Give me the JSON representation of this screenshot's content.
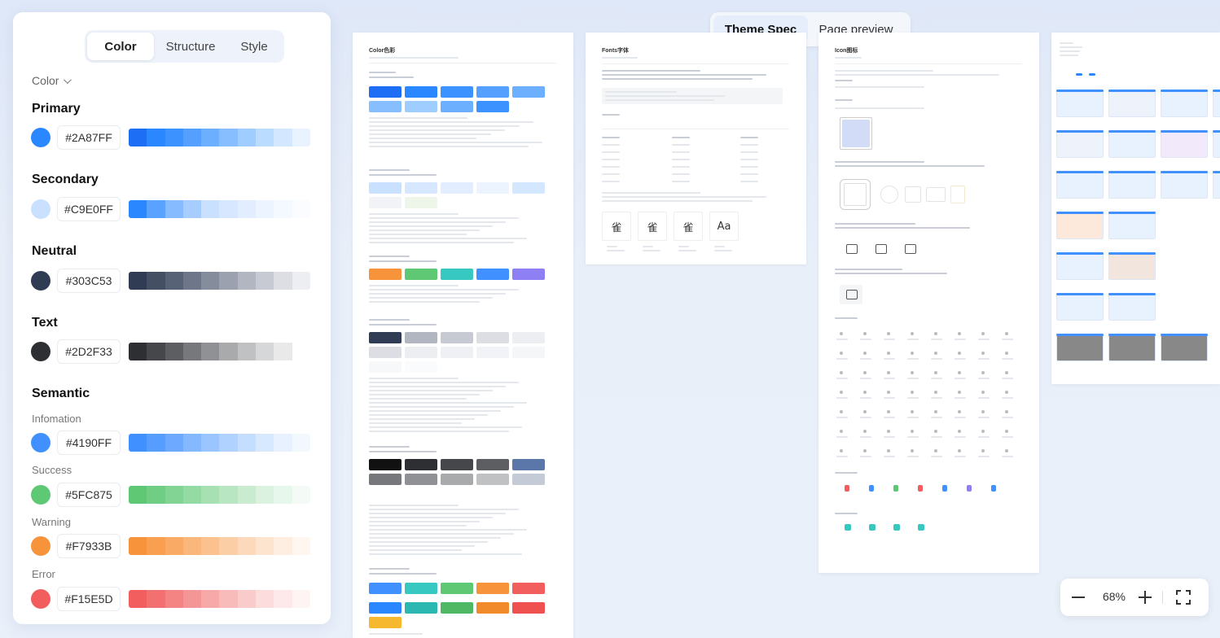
{
  "panel": {
    "tabs": [
      {
        "label": "Color",
        "active": true
      },
      {
        "label": "Structure",
        "active": false
      },
      {
        "label": "Style",
        "active": false
      }
    ],
    "filter_label": "Color",
    "groups": {
      "primary": {
        "title": "Primary",
        "hex": "#2A87FF",
        "ramp": [
          "#1e6ef5",
          "#2a87ff",
          "#3c92ff",
          "#55a0ff",
          "#6cafff",
          "#86beff",
          "#a0cdff",
          "#badcff",
          "#d3e8ff",
          "#e9f3ff"
        ]
      },
      "secondary": {
        "title": "Secondary",
        "hex": "#C9E0FF",
        "ramp": [
          "#2a87ff",
          "#5aa2ff",
          "#86bbff",
          "#a7cdff",
          "#c9e0ff",
          "#d6e7ff",
          "#e2eeff",
          "#ecf4ff",
          "#f4f8ff",
          "#fafcff"
        ]
      },
      "neutral": {
        "title": "Neutral",
        "hex": "#303C53",
        "ramp": [
          "#303c53",
          "#444f64",
          "#586277",
          "#6e778a",
          "#858c9c",
          "#9ba1ae",
          "#b1b6c0",
          "#c7cad2",
          "#dcdee3",
          "#eceef1"
        ]
      },
      "text": {
        "title": "Text",
        "hex": "#2D2F33",
        "ramp": [
          "#2d2f33",
          "#45474b",
          "#5c5e62",
          "#76787b",
          "#8f9194",
          "#a8aaac",
          "#c0c1c3",
          "#d6d7d8",
          "#e9e9ea",
          "#ffffff"
        ]
      },
      "semantic": {
        "title": "Semantic",
        "items": [
          {
            "label": "Infomation",
            "hex": "#4190FF",
            "ramp": [
              "#4190ff",
              "#579dff",
              "#6daaff",
              "#84b8ff",
              "#9ac5ff",
              "#b0d2ff",
              "#c4deff",
              "#d7e9ff",
              "#e7f1ff",
              "#f3f8ff"
            ]
          },
          {
            "label": "Success",
            "hex": "#5FC875",
            "ramp": [
              "#5fc875",
              "#70ce84",
              "#82d494",
              "#94daa3",
              "#a6e0b3",
              "#b8e6c2",
              "#c9ecd1",
              "#daf2df",
              "#e8f7ec",
              "#f4fbf6"
            ]
          },
          {
            "label": "Warning",
            "hex": "#F7933B",
            "ramp": [
              "#f7933b",
              "#f89f50",
              "#f9ab65",
              "#fab77b",
              "#fbc290",
              "#fccea6",
              "#fcd9bb",
              "#fde4cf",
              "#feeee2",
              "#fff6ef"
            ]
          },
          {
            "label": "Error",
            "hex": "#F15E5D",
            "ramp": [
              "#f15e5d",
              "#f27170",
              "#f48383",
              "#f59696",
              "#f7a8a8",
              "#f9baba",
              "#facbcb",
              "#fcdcdc",
              "#fde9e9",
              "#fef4f4"
            ]
          }
        ]
      }
    }
  },
  "view_toggle": {
    "options": [
      "Theme Spec",
      "Page preview"
    ],
    "active": "Theme Spec"
  },
  "canvas": {
    "page1_title": "Color色彩",
    "page2_title": "Fonts字体",
    "page3_title": "Icon图标",
    "font_glyphs": [
      "雀",
      "雀",
      "雀",
      "Aa"
    ]
  },
  "zoom": {
    "value": "68%"
  }
}
